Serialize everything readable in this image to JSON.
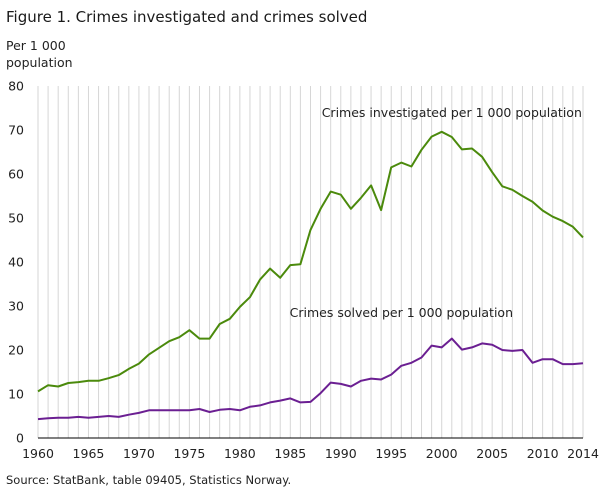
{
  "chart_data": {
    "type": "line",
    "title": "Figure 1. Crimes investigated and crimes solved",
    "ylabel_lines": [
      "Per 1 000",
      "population"
    ],
    "xlabel": "",
    "source": "Source: StatBank, table 09405, Statistics Norway.",
    "xlim": [
      1960,
      2014
    ],
    "ylim": [
      0,
      80
    ],
    "x_ticks": [
      1960,
      1965,
      1970,
      1975,
      1980,
      1985,
      1990,
      1995,
      2000,
      2005,
      2010,
      2014
    ],
    "y_ticks": [
      0,
      10,
      20,
      30,
      40,
      50,
      60,
      70,
      80
    ],
    "grid": "vertical-yearly",
    "legend": "none",
    "x": [
      1960,
      1961,
      1962,
      1963,
      1964,
      1965,
      1966,
      1967,
      1968,
      1969,
      1970,
      1971,
      1972,
      1973,
      1974,
      1975,
      1976,
      1977,
      1978,
      1979,
      1980,
      1981,
      1982,
      1983,
      1984,
      1985,
      1986,
      1987,
      1988,
      1989,
      1990,
      1991,
      1992,
      1993,
      1994,
      1995,
      1996,
      1997,
      1998,
      1999,
      2000,
      2001,
      2002,
      2003,
      2004,
      2005,
      2006,
      2007,
      2008,
      2009,
      2010,
      2011,
      2012,
      2013,
      2014
    ],
    "series": [
      {
        "name": "Crimes investigated per 1 000 population",
        "color": "#4b8a0c",
        "values": [
          10.6,
          12.0,
          11.7,
          12.5,
          12.7,
          13.0,
          13.0,
          13.6,
          14.3,
          15.7,
          16.9,
          19.0,
          20.5,
          22.0,
          22.9,
          24.5,
          22.6,
          22.6,
          25.9,
          27.1,
          29.8,
          32.0,
          36.0,
          38.5,
          36.4,
          39.3,
          39.5,
          47.3,
          52.1,
          56.0,
          55.3,
          52.1,
          54.6,
          57.4,
          51.8,
          61.5,
          62.6,
          61.7,
          65.5,
          68.5,
          69.6,
          68.4,
          65.6,
          65.8,
          63.9,
          60.4,
          57.2,
          56.4,
          55.0,
          53.7,
          51.7,
          50.3,
          49.3,
          48.0,
          45.6
        ],
        "label_anchor": {
          "x": 2001,
          "y": 73
        }
      },
      {
        "name": "Crimes solved per 1 000 population",
        "color": "#6b1f92",
        "values": [
          4.3,
          4.5,
          4.6,
          4.6,
          4.8,
          4.6,
          4.8,
          5.0,
          4.8,
          5.3,
          5.7,
          6.3,
          6.3,
          6.3,
          6.3,
          6.3,
          6.6,
          5.9,
          6.4,
          6.6,
          6.3,
          7.1,
          7.4,
          8.1,
          8.5,
          9.0,
          8.1,
          8.2,
          10.2,
          12.6,
          12.3,
          11.7,
          13.0,
          13.5,
          13.3,
          14.4,
          16.4,
          17.1,
          18.3,
          21.0,
          20.6,
          22.6,
          20.1,
          20.6,
          21.5,
          21.2,
          20.0,
          19.8,
          20.0,
          17.1,
          17.9,
          17.9,
          16.8,
          16.8,
          17.0
        ],
        "label_anchor": {
          "x": 1996,
          "y": 27.5
        }
      }
    ]
  }
}
